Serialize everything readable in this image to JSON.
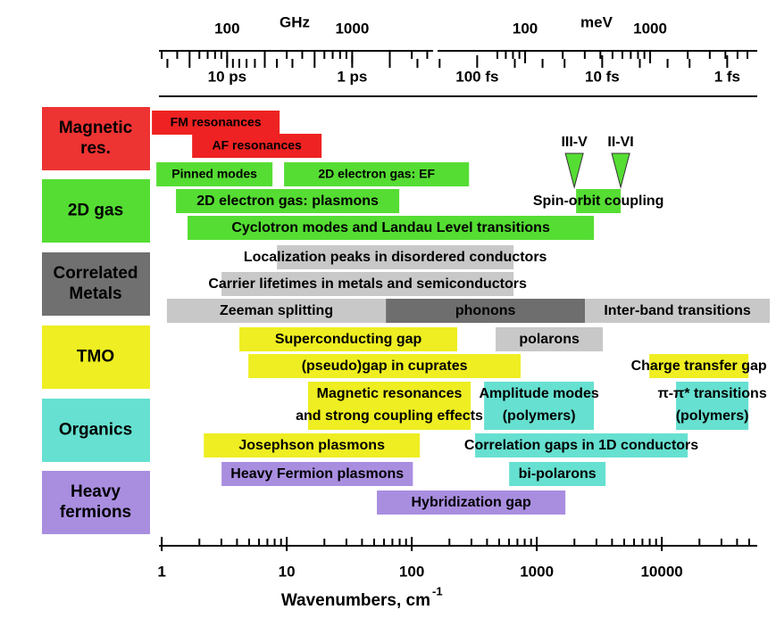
{
  "chart_data": {
    "type": "range",
    "log_x": true,
    "xlim": [
      0.95,
      58000
    ],
    "xticks": [
      1,
      10,
      100,
      1000,
      10000
    ],
    "xminor": [
      2,
      3,
      4,
      5,
      6,
      7,
      8,
      9,
      20,
      30,
      40,
      50,
      60,
      70,
      80,
      90,
      200,
      300,
      400,
      500,
      600,
      700,
      800,
      900,
      2000,
      3000,
      4000,
      5000,
      6000,
      7000,
      8000,
      9000,
      20000,
      30000,
      40000,
      50000
    ],
    "x_label": "Wavenumbers, cm",
    "x_label_sup": "-1",
    "top_axes": [
      {
        "unit": "GHz",
        "ticks": [
          {
            "value": 3.336,
            "label": "100"
          },
          {
            "value": 33.36,
            "label": "1000"
          }
        ],
        "minor": [
          1.0,
          1.33,
          1.67,
          2.0,
          2.33,
          2.67,
          3.0,
          6.67,
          10.0,
          13.3,
          16.7,
          20.0,
          23.3,
          26.7,
          30.0,
          66.7,
          100,
          133
        ]
      },
      {
        "unit": "meV",
        "ticks": [
          {
            "value": 806.6,
            "label": "100"
          },
          {
            "value": 8066,
            "label": "1000"
          }
        ],
        "minor": [
          484,
          565,
          645,
          726,
          1613,
          2420,
          3226,
          4033,
          4839,
          5646,
          6452,
          7259,
          16131,
          24197,
          32262,
          40328,
          48394
        ]
      }
    ],
    "time_axis": {
      "ticks": [
        {
          "value": 3.336,
          "label": "10 ps"
        },
        {
          "value": 33.36,
          "label": "1 ps"
        },
        {
          "value": 333.6,
          "label": "100 fs"
        },
        {
          "value": 3336,
          "label": "10 fs"
        },
        {
          "value": 33356,
          "label": "1 fs"
        }
      ],
      "minor": [
        1.11,
        1.67,
        3.71,
        4.17,
        4.77,
        5.56,
        6.67,
        8.34,
        11.1,
        16.7,
        66.7,
        111,
        167,
        667,
        1112,
        1668,
        6671,
        11119,
        16678
      ]
    },
    "groups": [
      {
        "label": [
          "Magnetic",
          "res."
        ],
        "color": "#ee3333",
        "text_color": "#ffffff"
      },
      {
        "label": [
          "2D gas"
        ],
        "color": "#55dd33",
        "text_color": "#000000"
      },
      {
        "label": [
          "Correlated",
          "Metals"
        ],
        "color": "#707070",
        "text_color": "#ffffff"
      },
      {
        "label": [
          "TMO"
        ],
        "color": "#eeee22",
        "text_color": "#000000"
      },
      {
        "label": [
          "Organics"
        ],
        "color": "#66e0d0",
        "text_color": "#000000"
      },
      {
        "label": [
          "Heavy",
          "fermions"
        ],
        "color": "#a98ee0",
        "text_color": "#000000"
      }
    ],
    "markers": [
      {
        "label": "III-V",
        "x": 1995,
        "color": "#55dd33"
      },
      {
        "label": "II-VI",
        "x": 4690,
        "color": "#55dd33"
      }
    ],
    "rows": [
      [
        {
          "label": [
            "FM resonances"
          ],
          "start": 0.834,
          "end": 8.77,
          "color": "#ee2222"
        }
      ],
      [
        {
          "label": [
            "AF resonances"
          ],
          "start": 1.75,
          "end": 19.0,
          "color": "#ee2222"
        }
      ],
      [
        {
          "label": [
            "Pinned modes"
          ],
          "start": 0.906,
          "end": 7.69,
          "color": "#55dd33"
        },
        {
          "label": [
            "2D electron gas: EF"
          ],
          "start": 9.52,
          "end": 287,
          "color": "#55dd33"
        }
      ],
      [
        {
          "label": [
            "2D electron gas: plasmons"
          ],
          "start": 1.3,
          "end": 79.4,
          "color": "#55dd33"
        },
        {
          "label": [
            "Spin-orbit coupling"
          ],
          "start": 2063,
          "end": 4693,
          "color": "#55dd33"
        }
      ],
      [
        {
          "label": [
            "Cyclotron modes and Landau Level transitions"
          ],
          "start": 1.61,
          "end": 2865,
          "color": "#55dd33"
        }
      ],
      [
        {
          "label": [
            "Localization peaks in disordered conductors"
          ],
          "start": 8.35,
          "end": 652,
          "color": "#c8c8c8"
        }
      ],
      [
        {
          "label": [
            "Carrier lifetimes in metals and semiconductors"
          ],
          "start": 3.01,
          "end": 652,
          "color": "#c8c8c8"
        }
      ],
      [
        {
          "label": [
            "Zeeman splitting"
          ],
          "start": 1.1,
          "end": 62.1,
          "color": "#c8c8c8"
        },
        {
          "label": [
            "phonons"
          ],
          "start": 62.1,
          "end": 2432,
          "color": "#6e6e6e",
          "text_color": "#ffffff"
        },
        {
          "label": [
            "Inter-band transitions"
          ],
          "start": 2432,
          "end": 73000,
          "color": "#c8c8c8"
        }
      ],
      [
        {
          "label": [
            "Superconducting gap"
          ],
          "start": 4.18,
          "end": 231,
          "color": "#eeee22"
        },
        {
          "label": [
            "polarons"
          ],
          "start": 469,
          "end": 3378,
          "color": "#c8c8c8"
        }
      ],
      [
        {
          "label": [
            "(pseudo)gap in cuprates"
          ],
          "start": 4.93,
          "end": 743,
          "color": "#eeee22"
        },
        {
          "label": [
            "Charge transfer gap"
          ],
          "start": 7943,
          "end": 49300,
          "color": "#eeee22"
        }
      ],
      [
        {
          "label": [
            "Magnetic resonances",
            "and  strong coupling effects"
          ],
          "start": 14.8,
          "end": 296,
          "color": "#eeee22"
        },
        {
          "label": [
            "Amplitude modes",
            "(polymers)"
          ],
          "start": 379,
          "end": 2865,
          "color": "#66e0d0"
        },
        {
          "label": [
            "π-π* transitions",
            "(polymers)"
          ],
          "start": 13000,
          "end": 49300,
          "color": "#66e0d0"
        }
      ],
      [
        {
          "label": [
            "Josephson plasmons"
          ],
          "start": 2.17,
          "end": 116,
          "color": "#eeee22"
        },
        {
          "label": [
            "Correlation gaps in 1D conductors"
          ],
          "start": 321,
          "end": 16100,
          "color": "#66e0d0"
        }
      ],
      [
        {
          "label": [
            "Heavy Fermion plasmons"
          ],
          "start": 3.01,
          "end": 102,
          "color": "#a98ee0"
        },
        {
          "label": [
            "bi-polarons"
          ],
          "start": 601,
          "end": 3550,
          "color": "#66e0d0"
        }
      ],
      [
        {
          "label": [
            "Hybridization gap"
          ],
          "start": 52.6,
          "end": 1694,
          "color": "#a98ee0"
        }
      ]
    ]
  }
}
